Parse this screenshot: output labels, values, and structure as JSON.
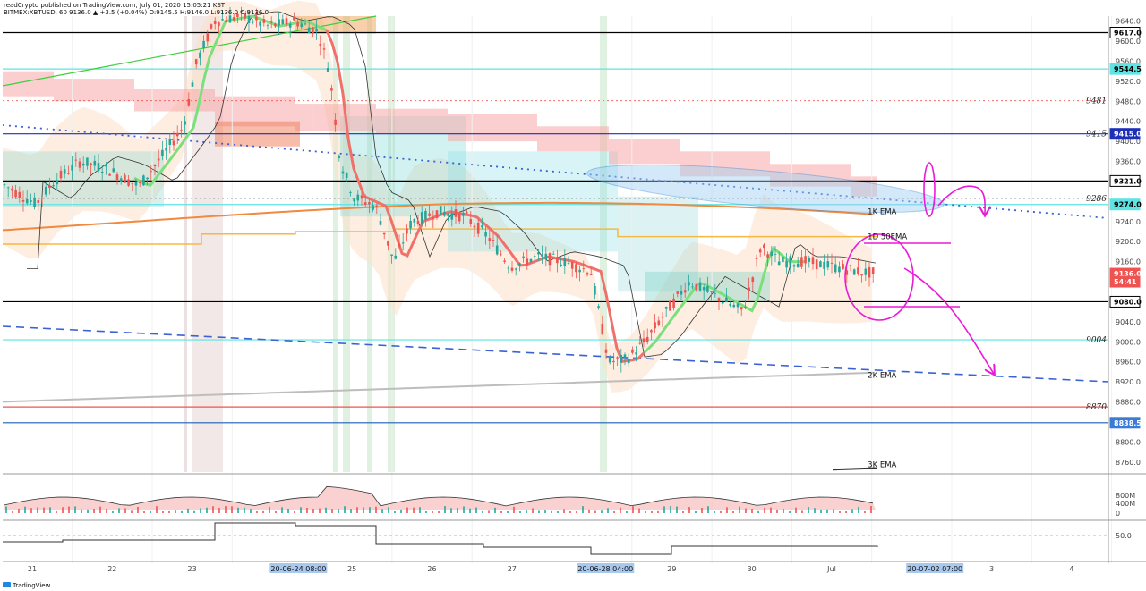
{
  "header": {
    "line1": "readCrypto published on TradingView.com, July 01, 2020 15:05:21 KST",
    "line2": "BITMEX:XBTUSD, 60  9136.0 ▲ +3.5 (+0.04%)  O:9145.5  H:9146.0  L:9136.0  C:9136.0"
  },
  "footer": {
    "brand": "TradingView"
  },
  "colors": {
    "up": "#26a69a",
    "down": "#ef5350",
    "cyan": "#5fe3e3",
    "navy": "#1c2fb8",
    "orange": "#f0a060",
    "gold": "#f5b942",
    "magenta": "#e81cd6",
    "gray": "#bdbdbd"
  },
  "chart_data": {
    "type": "candlestick",
    "symbol": "BITMEX:XBTUSD",
    "timeframe": "60",
    "y_axis": {
      "min": 8740,
      "max": 9650,
      "ticks": [
        9640,
        9600,
        9560,
        9520,
        9480,
        9440,
        9400,
        9360,
        9320,
        9280,
        9240,
        9200,
        9160,
        9120,
        9080,
        9040,
        9000,
        8960,
        8920,
        8880,
        8840,
        8800,
        8760
      ]
    },
    "x_axis": {
      "labels": [
        {
          "text": "21",
          "day": 0
        },
        {
          "text": "22",
          "day": 1
        },
        {
          "text": "23",
          "day": 2
        },
        {
          "text": "25",
          "day": 4
        },
        {
          "text": "26",
          "day": 5
        },
        {
          "text": "27",
          "day": 6
        },
        {
          "text": "29",
          "day": 8
        },
        {
          "text": "30",
          "day": 9
        },
        {
          "text": "Jul",
          "day": 10
        },
        {
          "text": "3",
          "day": 12
        },
        {
          "text": "4",
          "day": 13
        }
      ],
      "highlighted": [
        {
          "text": "20-06-24  08:00",
          "day": 3.33
        },
        {
          "text": "20-06-28  04:00",
          "day": 7.17
        },
        {
          "text": "20-07-02  07:00",
          "day": 11.29
        }
      ]
    },
    "price_tags": [
      {
        "text": "9617.0",
        "price": 9617,
        "style": "black"
      },
      {
        "text": "9544.5",
        "price": 9544.5,
        "style": "cyan"
      },
      {
        "text": "9415.0",
        "price": 9415,
        "style": "navy"
      },
      {
        "text": "9321.0",
        "price": 9321,
        "style": "black"
      },
      {
        "text": "9274.0",
        "price": 9274,
        "style": "cyan"
      },
      {
        "text": "9136.0",
        "price": 9136,
        "style": "red"
      },
      {
        "text": "54:41",
        "price": 9120,
        "style": "red"
      },
      {
        "text": "9080.0",
        "price": 9080,
        "style": "black"
      },
      {
        "text": "8838.5",
        "price": 8838.5,
        "style": "blue"
      }
    ],
    "horizontal_levels": [
      {
        "price": 9617,
        "color": "#000000",
        "style": "solid"
      },
      {
        "price": 9544.5,
        "color": "#5fe3e3",
        "style": "solid"
      },
      {
        "price": 9481,
        "color": "#ef5350",
        "style": "dotted",
        "label": "9481"
      },
      {
        "price": 9415,
        "color": "#1c2fb8",
        "style": "solid",
        "label": "9415"
      },
      {
        "price": 9321,
        "color": "#000000",
        "style": "solid"
      },
      {
        "price": 9286,
        "color": "#999999",
        "style": "dotted",
        "label": "9286"
      },
      {
        "price": 9274,
        "color": "#5fe3e3",
        "style": "solid"
      },
      {
        "price": 9080,
        "color": "#000000",
        "style": "solid"
      },
      {
        "price": 9004,
        "color": "#5fe3e3",
        "style": "solid",
        "label": "9004"
      },
      {
        "price": 8870,
        "color": "#ef5350",
        "style": "solid",
        "label": "8870"
      },
      {
        "price": 8838.5,
        "color": "#1c5fb8",
        "style": "solid"
      }
    ],
    "annotations": [
      {
        "text": "1K EMA",
        "day": 10.45,
        "price": 9255
      },
      {
        "text": "1D 50EMA",
        "day": 10.45,
        "price": 9205
      },
      {
        "text": "2K EMA",
        "day": 10.45,
        "price": 8928
      },
      {
        "text": "3K EMA",
        "day": 10.45,
        "price": 8750
      }
    ],
    "volume_axis": [
      "800M",
      "400M",
      "0"
    ],
    "oscillator_axis": [
      "50.0"
    ]
  }
}
